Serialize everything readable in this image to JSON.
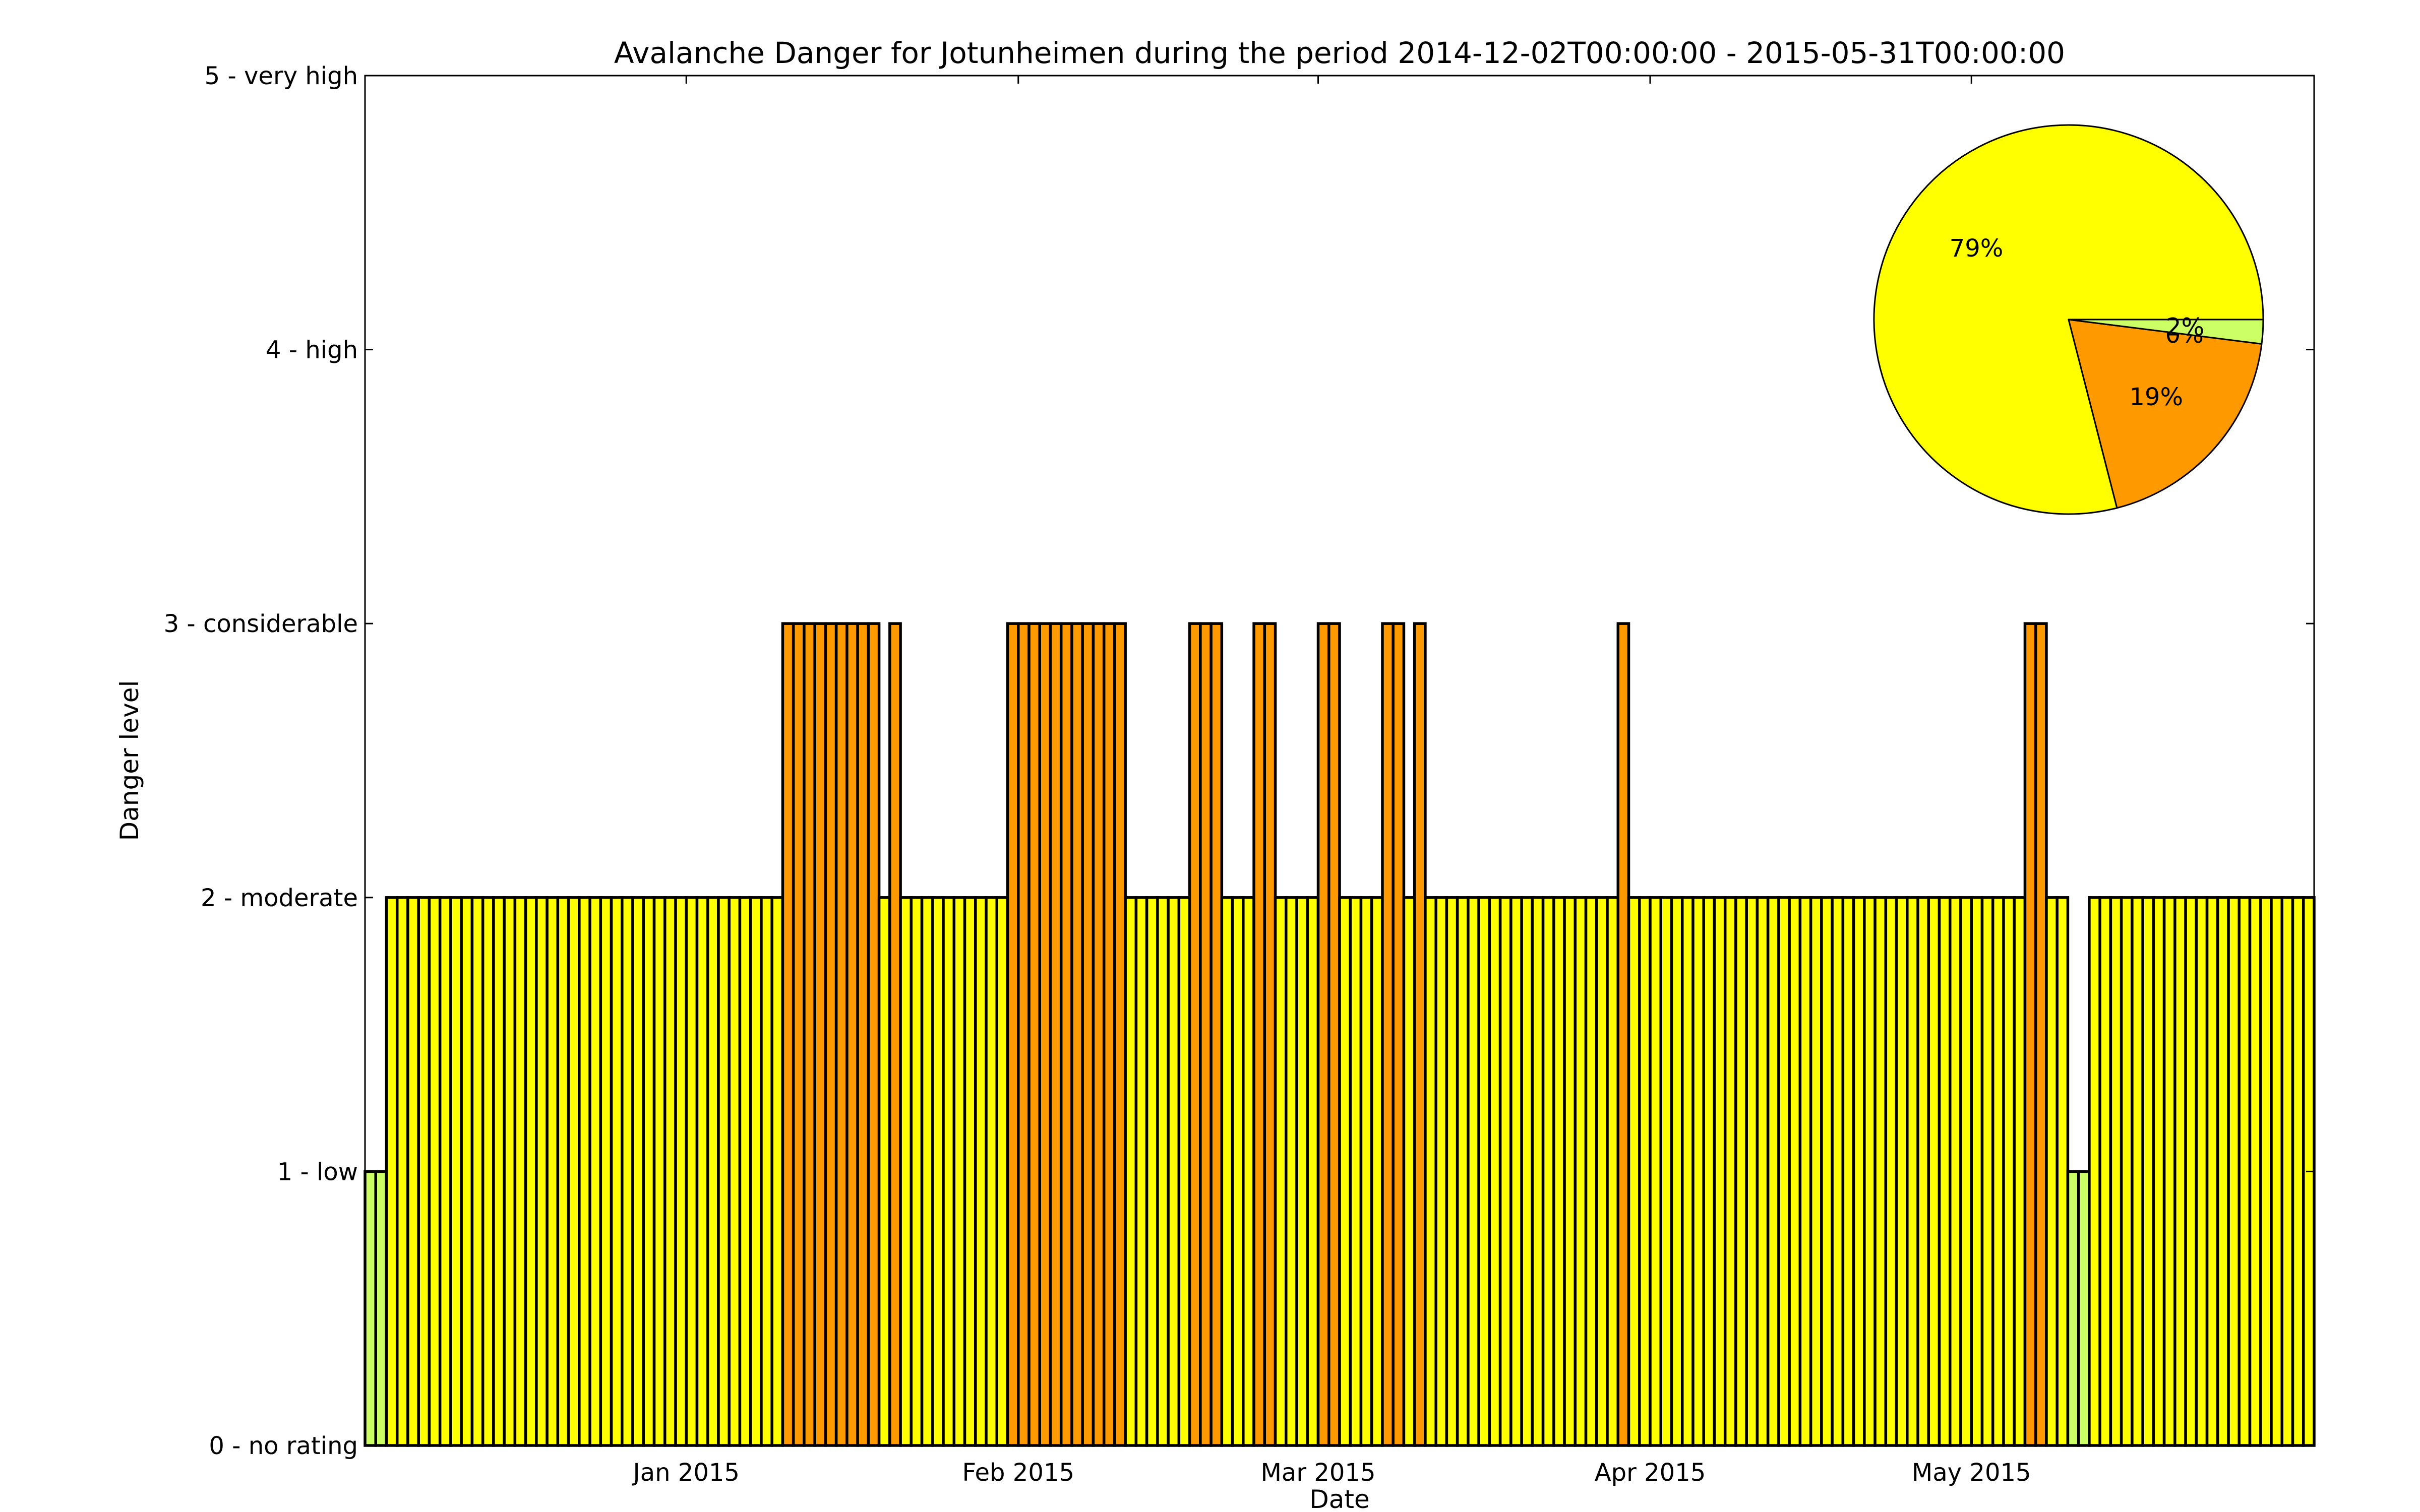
{
  "chart_data": {
    "type": "bar",
    "title": "Avalanche Danger for Jotunheimen during the period 2014-12-02T00:00:00 - 2015-05-31T00:00:00",
    "xlabel": "Date",
    "ylabel": "Danger level",
    "start_date": "2014-12-02",
    "end_date": "2015-05-31",
    "ylim": [
      0,
      5
    ],
    "grid": false,
    "y_ticks": [
      {
        "value": 0,
        "label": "0 - no rating"
      },
      {
        "value": 1,
        "label": "1 - low"
      },
      {
        "value": 2,
        "label": "2 - moderate"
      },
      {
        "value": 3,
        "label": "3 - considerable"
      },
      {
        "value": 4,
        "label": "4 - high"
      },
      {
        "value": 5,
        "label": "5 - very high"
      }
    ],
    "x_ticks": [
      {
        "date": "2015-01-01",
        "label": "Jan 2015"
      },
      {
        "date": "2015-02-01",
        "label": "Feb 2015"
      },
      {
        "date": "2015-03-01",
        "label": "Mar 2015"
      },
      {
        "date": "2015-04-01",
        "label": "Apr 2015"
      },
      {
        "date": "2015-05-01",
        "label": "May 2015"
      }
    ],
    "level_colors": {
      "1": "#ccff66",
      "2": "#ffff00",
      "3": "#ff9900"
    },
    "daily_levels": [
      1,
      1,
      2,
      2,
      2,
      2,
      2,
      2,
      2,
      2,
      2,
      2,
      2,
      2,
      2,
      2,
      2,
      2,
      2,
      2,
      2,
      2,
      2,
      2,
      2,
      2,
      2,
      2,
      2,
      2,
      2,
      2,
      2,
      2,
      2,
      2,
      2,
      2,
      2,
      3,
      3,
      3,
      3,
      3,
      3,
      3,
      3,
      3,
      2,
      3,
      2,
      2,
      2,
      2,
      2,
      2,
      2,
      2,
      2,
      2,
      3,
      3,
      3,
      3,
      3,
      3,
      3,
      3,
      3,
      3,
      3,
      2,
      2,
      2,
      2,
      2,
      2,
      3,
      3,
      3,
      2,
      2,
      2,
      3,
      3,
      2,
      2,
      2,
      2,
      3,
      3,
      2,
      2,
      2,
      2,
      3,
      3,
      2,
      3,
      2,
      2,
      2,
      2,
      2,
      2,
      2,
      2,
      2,
      2,
      2,
      2,
      2,
      2,
      2,
      2,
      2,
      2,
      3,
      2,
      2,
      2,
      2,
      2,
      2,
      2,
      2,
      2,
      2,
      2,
      2,
      2,
      2,
      2,
      2,
      2,
      2,
      2,
      2,
      2,
      2,
      2,
      2,
      2,
      2,
      2,
      2,
      2,
      2,
      2,
      2,
      2,
      2,
      2,
      2,
      2,
      3,
      3,
      2,
      2,
      1,
      1,
      2,
      2,
      2,
      2,
      2,
      2,
      2,
      2,
      2,
      2,
      2,
      2,
      2,
      2,
      2,
      2,
      2,
      2,
      2,
      2,
      2
    ],
    "pie": {
      "slices": [
        {
          "level": 2,
          "percent": 79,
          "label": "79%",
          "color": "#ffff00"
        },
        {
          "level": 3,
          "percent": 19,
          "label": "19%",
          "color": "#ff9900"
        },
        {
          "level": 0,
          "percent": 0,
          "label": "0%",
          "color": "#ffffff"
        },
        {
          "level": 1,
          "percent": 2,
          "label": "2%",
          "color": "#ccff66"
        }
      ]
    }
  }
}
